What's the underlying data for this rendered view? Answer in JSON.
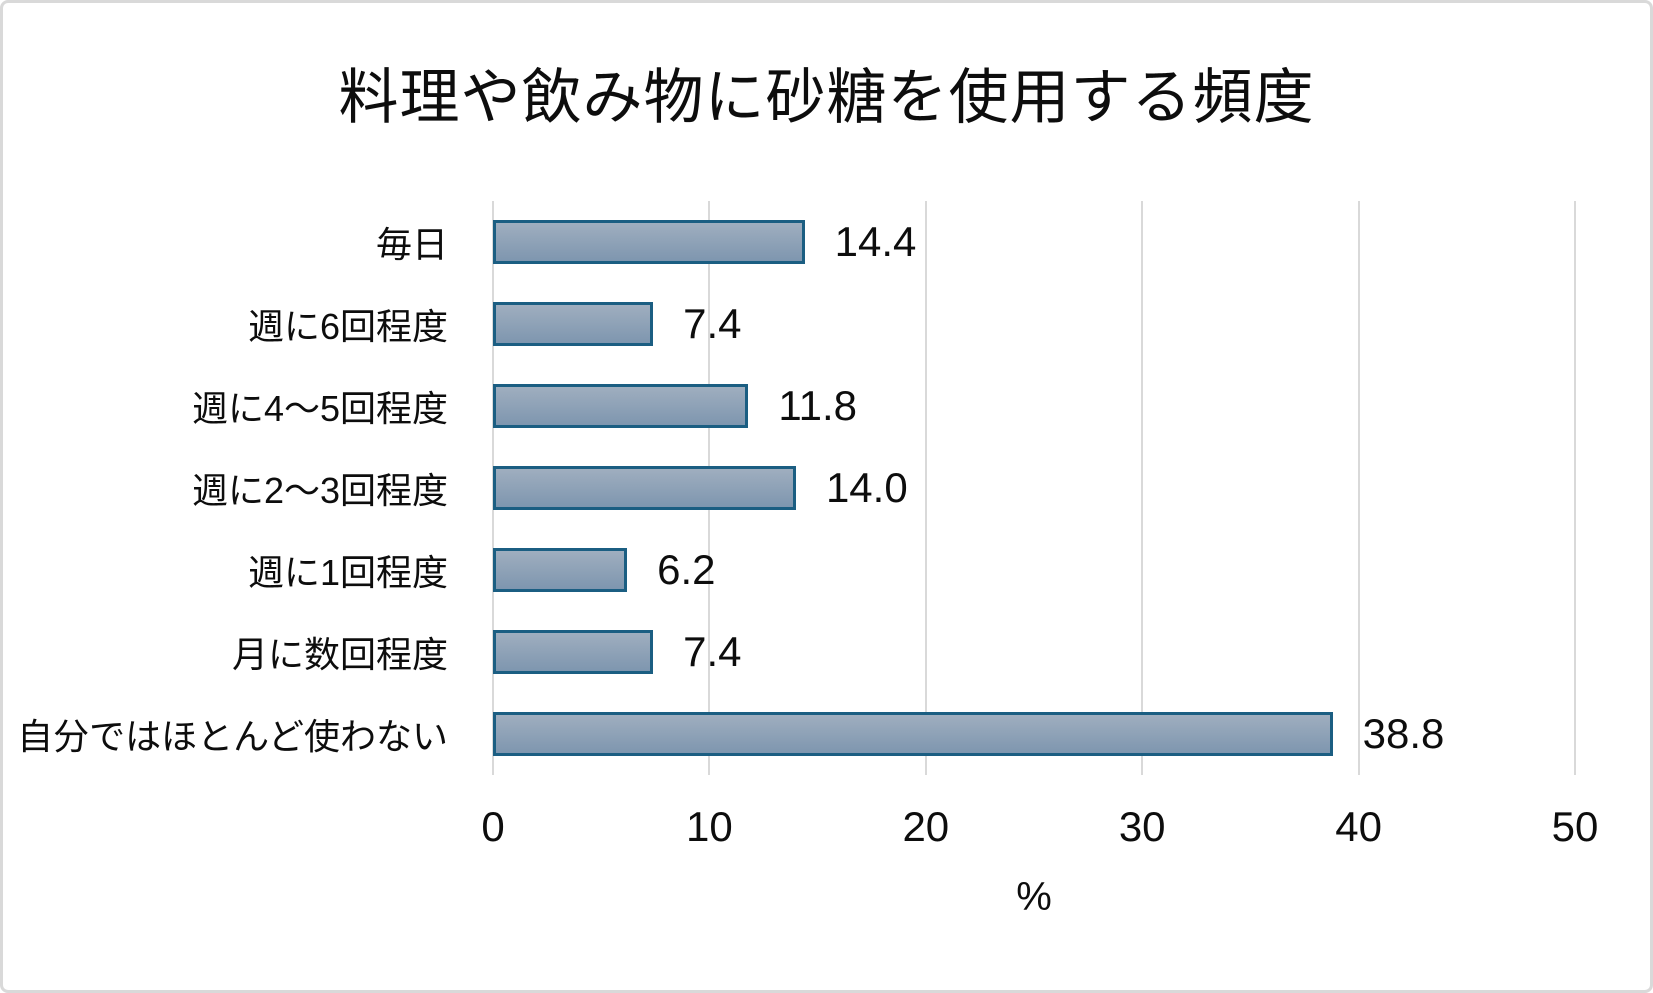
{
  "chart_data": {
    "type": "bar",
    "orientation": "horizontal",
    "title": "料理や飲み物に砂糖を使用する頻度",
    "categories": [
      "毎日",
      "週に6回程度",
      "週に4～5回程度",
      "週に2～3回程度",
      "週に1回程度",
      "月に数回程度",
      "自分ではほとんど使わない"
    ],
    "values": [
      14.4,
      7.4,
      11.8,
      14.0,
      6.2,
      7.4,
      38.8
    ],
    "value_labels": [
      "14.4",
      "7.4",
      "11.8",
      "14.0",
      "6.2",
      "7.4",
      "38.8"
    ],
    "xlabel": "%",
    "xlim": [
      0,
      50
    ],
    "x_ticks": [
      0,
      10,
      20,
      30,
      40,
      50
    ],
    "grid": true,
    "legend_position": "none"
  },
  "colors": {
    "bar_fill_top": "#9FAEBF",
    "bar_fill_bottom": "#7E96AF",
    "bar_border": "#1B5E82",
    "gridline": "#D9D9D9",
    "text": "#0d0d0d",
    "background": "#FFFFFF",
    "frame_border": "#D9D9D9"
  }
}
